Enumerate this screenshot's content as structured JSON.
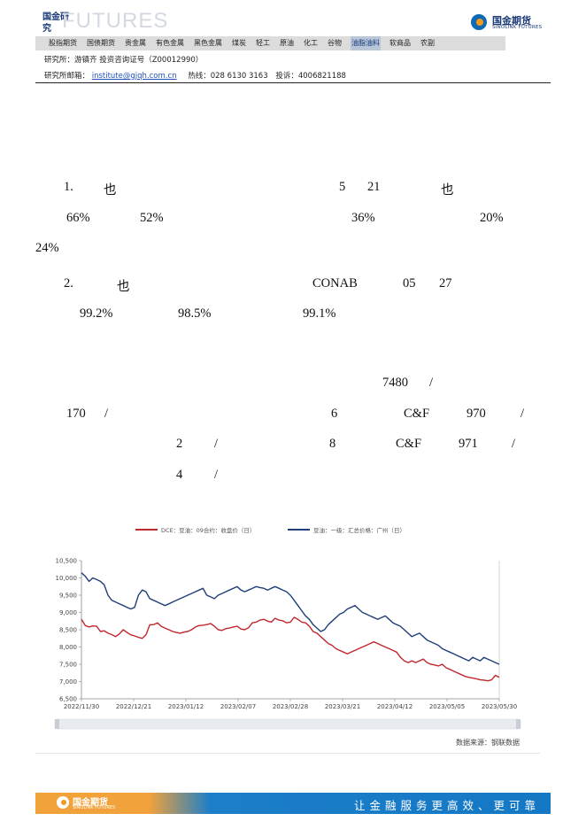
{
  "header": {
    "brand_cn": "国金研究",
    "brand_futures": "FUTURES",
    "logo_cn": "国金期货",
    "logo_en": "SINOLINK FUTURES",
    "nav": [
      "股指期货",
      "国债期货",
      "贵金属",
      "有色金属",
      "黑色金属",
      "煤炭",
      "轻工",
      "原油",
      "化工",
      "谷物",
      "油脂油料",
      "软商品",
      "农副"
    ],
    "nav_active_index": 10,
    "researcher_line": "研究所：游镇齐 投资咨询证号（Z00012990）",
    "email_label": "研究所邮箱：",
    "email": "institute@gjqh.com.cn",
    "hotline": "热线：028 6130 3163",
    "complaint": "投诉：4006821188"
  },
  "body_fragments": [
    "1.",
    "也",
    "5",
    "21",
    "也",
    "66%",
    "52%",
    "36%",
    "20%",
    "24%",
    "2.",
    "也",
    "CONAB",
    "05",
    "27",
    "99.2%",
    "98.5%",
    "99.1%",
    "7480",
    "/",
    "170",
    "/",
    "6",
    "C&F",
    "970",
    "/",
    "2",
    "/",
    "8",
    "C&F",
    "971",
    "/",
    "4",
    "/"
  ],
  "chart_data": {
    "type": "line",
    "legend": [
      "DCE：豆油：09合约：收盘价（日）",
      "豆油：一级：汇总价格：广州（日）"
    ],
    "colors": [
      "#c0272d",
      "#1f3f7a"
    ],
    "x_labels": [
      "2022/11/30",
      "2022/12/21",
      "2023/01/12",
      "2023/02/07",
      "2023/02/28",
      "2023/03/21",
      "2023/04/12",
      "2023/05/05",
      "2023/05/30"
    ],
    "y_labels": [
      "10,500",
      "10,000",
      "9,500",
      "9,000",
      "8,500",
      "8,000",
      "7,500",
      "7,000",
      "6,500"
    ],
    "ylim": [
      6500,
      10500
    ],
    "series": [
      {
        "name": "DCE：豆油：09合约：收盘价（日）",
        "values": [
          8800,
          8620,
          8580,
          8610,
          8600,
          8450,
          8470,
          8400,
          8360,
          8300,
          8380,
          8500,
          8420,
          8350,
          8320,
          8280,
          8250,
          8350,
          8640,
          8650,
          8700,
          8600,
          8550,
          8500,
          8450,
          8420,
          8400,
          8430,
          8450,
          8500,
          8580,
          8620,
          8630,
          8650,
          8680,
          8600,
          8500,
          8480,
          8530,
          8550,
          8580,
          8600,
          8520,
          8500,
          8560,
          8700,
          8720,
          8780,
          8800,
          8750,
          8720,
          8830,
          8780,
          8760,
          8700,
          8720,
          8860,
          8800,
          8720,
          8700,
          8600,
          8450,
          8400,
          8300,
          8200,
          8100,
          8050,
          7950,
          7900,
          7850,
          7800,
          7850,
          7900,
          7950,
          8000,
          8050,
          8100,
          8150,
          8100,
          8050,
          8000,
          7950,
          7900,
          7850,
          7700,
          7600,
          7550,
          7600,
          7550,
          7600,
          7650,
          7550,
          7500,
          7480,
          7450,
          7500,
          7400,
          7350,
          7300,
          7250,
          7200,
          7150,
          7120,
          7100,
          7080,
          7050,
          7040,
          7020,
          7050,
          7180,
          7120
        ]
      },
      {
        "name": "豆油：一级：汇总价格：广州（日）",
        "values": [
          10150,
          10050,
          9900,
          10000,
          9950,
          9900,
          9800,
          9500,
          9350,
          9300,
          9250,
          9200,
          9150,
          9100,
          9150,
          9500,
          9650,
          9600,
          9400,
          9350,
          9300,
          9250,
          9200,
          9250,
          9300,
          9350,
          9400,
          9450,
          9500,
          9550,
          9600,
          9650,
          9700,
          9500,
          9450,
          9400,
          9500,
          9550,
          9600,
          9650,
          9700,
          9750,
          9650,
          9600,
          9650,
          9700,
          9750,
          9720,
          9700,
          9650,
          9700,
          9750,
          9700,
          9650,
          9600,
          9500,
          9350,
          9200,
          9050,
          8900,
          8800,
          8650,
          8550,
          8450,
          8500,
          8650,
          8750,
          8850,
          8950,
          9000,
          9100,
          9150,
          9200,
          9100,
          9000,
          8950,
          8900,
          8850,
          8800,
          8850,
          8900,
          8800,
          8700,
          8650,
          8600,
          8500,
          8400,
          8300,
          8350,
          8400,
          8300,
          8200,
          8150,
          8100,
          8050,
          7950,
          7900,
          7850,
          7800,
          7750,
          7700,
          7650,
          7600,
          7700,
          7650,
          7600,
          7700,
          7650,
          7600,
          7550,
          7500
        ]
      }
    ]
  },
  "source_note": "数据来源：钢联数据",
  "footer": {
    "logo_cn": "国金期货",
    "logo_en": "SINOLINK FUTURES",
    "slogan": "让金融服务更高效、更可靠"
  }
}
